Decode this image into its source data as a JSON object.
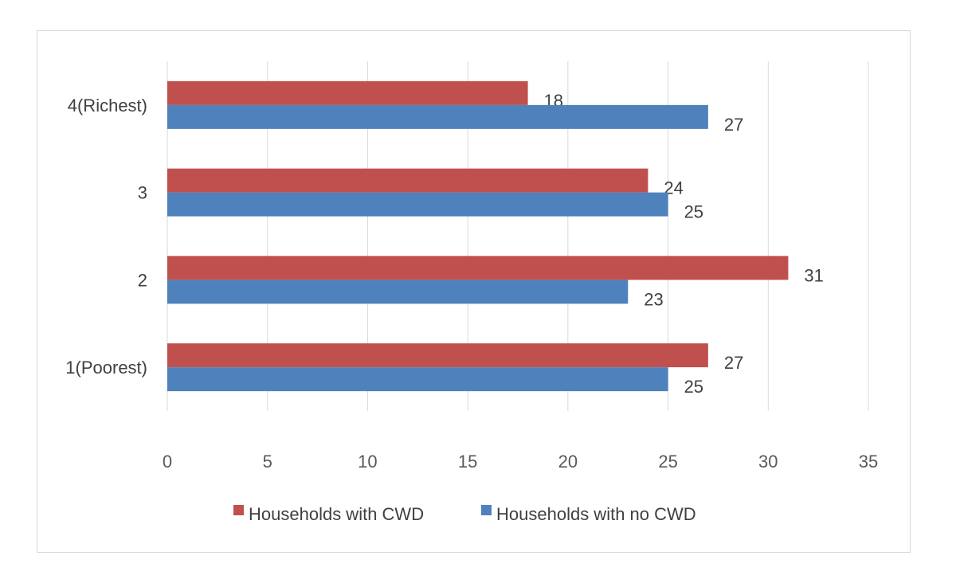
{
  "chart_data": {
    "type": "bar",
    "orientation": "horizontal",
    "categories": [
      "1(Poorest)",
      "2",
      "3",
      "4(Richest)"
    ],
    "series": [
      {
        "name": "Households with CWD",
        "values": [
          27,
          31,
          24,
          18
        ],
        "color": "#c0504d"
      },
      {
        "name": "Households with no CWD",
        "values": [
          25,
          23,
          25,
          27
        ],
        "color": "#4f81bd"
      }
    ],
    "xticks": [
      "0",
      "5",
      "10",
      "15",
      "20",
      "25",
      "30",
      "35"
    ],
    "xlim": [
      0,
      35
    ],
    "title": "",
    "xlabel": "",
    "ylabel": "",
    "grid": "vertical",
    "legend": "bottom"
  }
}
